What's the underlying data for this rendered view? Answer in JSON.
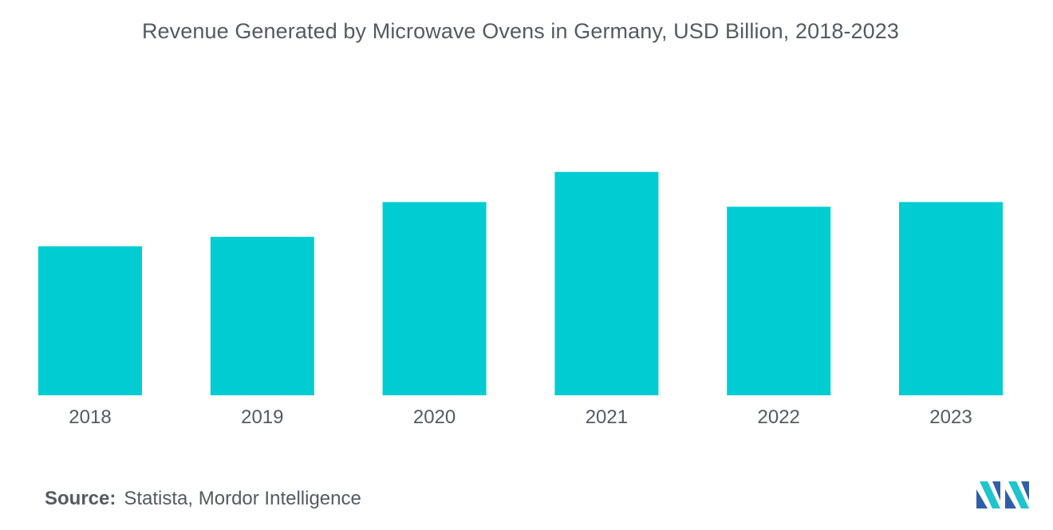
{
  "title": "Revenue Generated by Microwave Ovens in Germany, USD Billion, 2018-2023",
  "source": {
    "label": "Source:",
    "text": "Statista, Mordor Intelligence"
  },
  "brand_color": "#00ccd1",
  "chart_data": {
    "type": "bar",
    "title": "Revenue Generated by Microwave Ovens in Germany, USD Billion, 2018-2023",
    "categories": [
      "2018",
      "2019",
      "2020",
      "2021",
      "2022",
      "2023"
    ],
    "values": [
      1.88,
      2.0,
      2.44,
      2.82,
      2.38,
      2.44
    ],
    "xlabel": "",
    "ylabel": "USD Billion",
    "ylim": [
      0,
      3.3
    ],
    "grid": false,
    "legend": "none"
  }
}
